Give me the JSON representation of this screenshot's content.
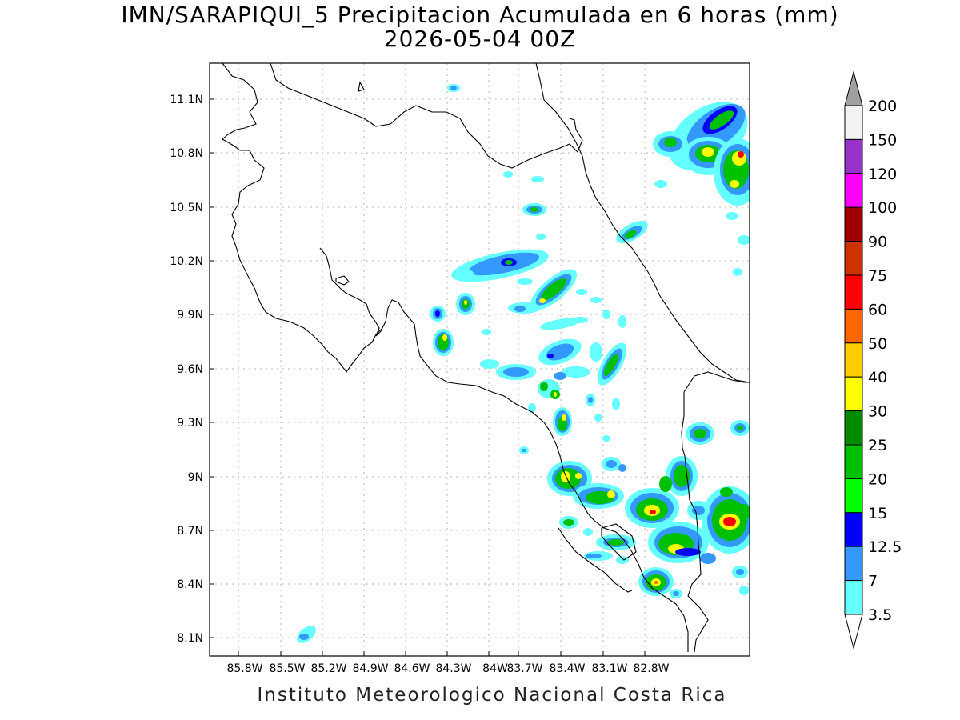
{
  "map": {
    "title_line1": "IMN/SARAPIQUI_5 Precipitacion Acumulada en 6 horas (mm)",
    "title_line2": "2026-05-04 00Z",
    "footer": "Instituto Meteorologico Nacional Costa Rica",
    "lat_ticks": [
      "11.1N",
      "10.8N",
      "10.5N",
      "10.2N",
      "9.9N",
      "9.6N",
      "9.3N",
      "9N",
      "8.7N",
      "8.4N",
      "8.1N"
    ],
    "lon_ticks": [
      "85.8W",
      "85.5W",
      "85.2W",
      "84.9W",
      "84.6W",
      "84.3W",
      "84W",
      "83.7W",
      "83.4W",
      "83.1W",
      "82.8W"
    ]
  },
  "legend": {
    "labels": [
      "200",
      "150",
      "120",
      "100",
      "90",
      "75",
      "60",
      "50",
      "40",
      "30",
      "25",
      "20",
      "15",
      "12.5",
      "7",
      "3.5"
    ],
    "colors": [
      "#f2f2f2",
      "#9932cc",
      "#ff00ff",
      "#a00000",
      "#cc3300",
      "#ff0000",
      "#ff6600",
      "#ffcc00",
      "#ffff00",
      "#008c00",
      "#00c000",
      "#00ff00",
      "#0000ff",
      "#3399ff",
      "#66ffff"
    ],
    "over_color": "#a0a0a0"
  }
}
